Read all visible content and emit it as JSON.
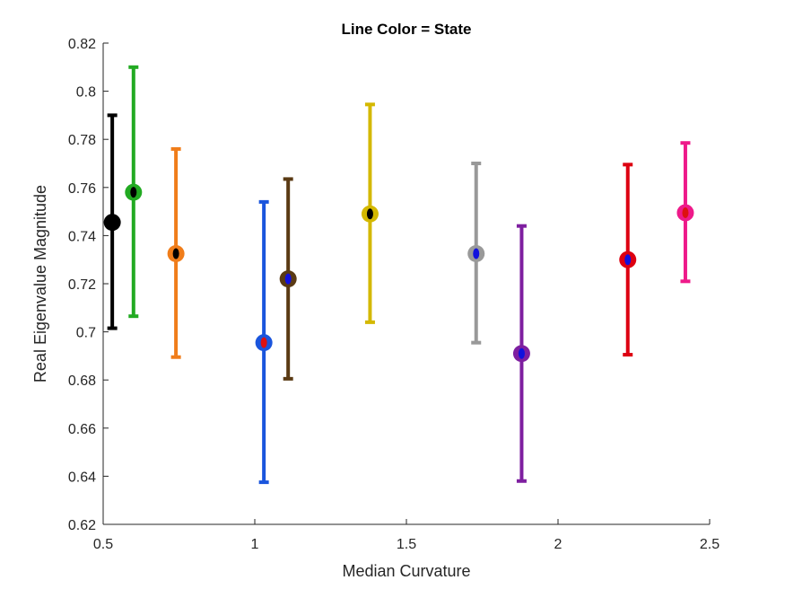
{
  "chart_data": {
    "type": "scatter",
    "subtype": "errorbar",
    "title": "Line Color = State",
    "xlabel": "Median Curvature",
    "ylabel": "Real Eigenvalue Magnitude",
    "xlim": [
      0.5,
      2.5
    ],
    "ylim": [
      0.62,
      0.82
    ],
    "xticks": [
      0.5,
      1,
      1.5,
      2,
      2.5
    ],
    "xtick_labels": [
      "0.5",
      "1",
      "1.5",
      "2",
      "2.5"
    ],
    "yticks": [
      0.62,
      0.64,
      0.66,
      0.68,
      0.7,
      0.72,
      0.74,
      0.76,
      0.78,
      0.8,
      0.82
    ],
    "ytick_labels": [
      "0.62",
      "0.64",
      "0.66",
      "0.68",
      "0.7",
      "0.72",
      "0.74",
      "0.76",
      "0.78",
      "0.8",
      "0.82"
    ],
    "grid": false,
    "points": [
      {
        "x": 0.53,
        "y": 0.7455,
        "lower": 0.7015,
        "upper": 0.79,
        "line_color": "#000000",
        "marker_color": "#000000"
      },
      {
        "x": 0.6,
        "y": 0.758,
        "lower": 0.7065,
        "upper": 0.81,
        "line_color": "#22aa22",
        "marker_color": "#000000"
      },
      {
        "x": 0.74,
        "y": 0.7325,
        "lower": 0.6895,
        "upper": 0.776,
        "line_color": "#f07d1a",
        "marker_color": "#000000"
      },
      {
        "x": 1.03,
        "y": 0.6955,
        "lower": 0.6375,
        "upper": 0.754,
        "line_color": "#1a55dd",
        "marker_color": "#dd1111"
      },
      {
        "x": 1.11,
        "y": 0.722,
        "lower": 0.6805,
        "upper": 0.7635,
        "line_color": "#5a3a14",
        "marker_color": "#1111dd"
      },
      {
        "x": 1.38,
        "y": 0.749,
        "lower": 0.704,
        "upper": 0.7945,
        "line_color": "#d4b800",
        "marker_color": "#000000"
      },
      {
        "x": 1.73,
        "y": 0.7325,
        "lower": 0.6955,
        "upper": 0.77,
        "line_color": "#999999",
        "marker_color": "#1111dd"
      },
      {
        "x": 1.88,
        "y": 0.691,
        "lower": 0.638,
        "upper": 0.744,
        "line_color": "#7e1fa0",
        "marker_color": "#1111dd"
      },
      {
        "x": 2.23,
        "y": 0.73,
        "lower": 0.6905,
        "upper": 0.7695,
        "line_color": "#dd0011",
        "marker_color": "#1111dd"
      },
      {
        "x": 2.42,
        "y": 0.7495,
        "lower": 0.721,
        "upper": 0.7785,
        "line_color": "#ee1a8a",
        "marker_color": "#dd1111"
      }
    ]
  }
}
